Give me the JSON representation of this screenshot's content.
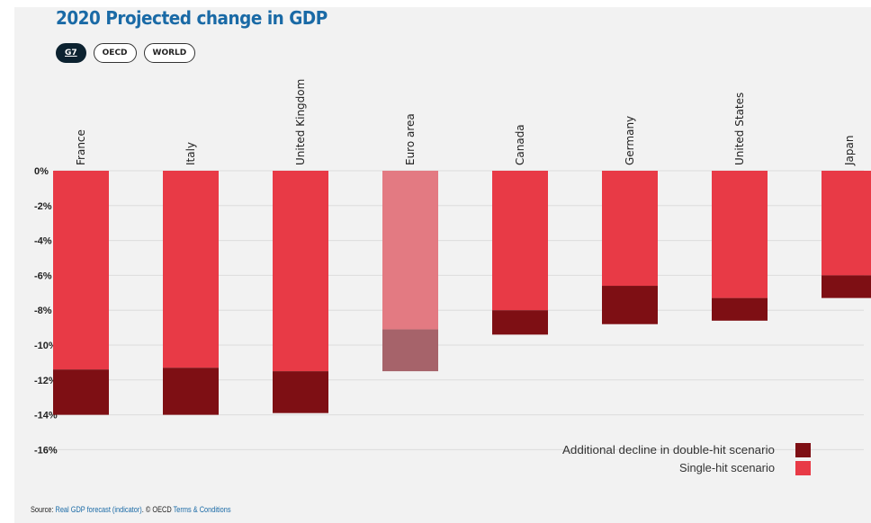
{
  "title": "2020 Projected change in GDP",
  "tabs": [
    {
      "label": "G7",
      "active": true
    },
    {
      "label": "OECD",
      "active": false
    },
    {
      "label": "WORLD",
      "active": false
    }
  ],
  "source": {
    "prefix": "Source: ",
    "link_text": "Real GDP forecast (indicator)",
    "middle": ". © OECD ",
    "terms_text": "Terms & Conditions"
  },
  "colors": {
    "single_hit": "#e83a46",
    "double_hit": "#7e0f14",
    "euro_single": "#e37a82",
    "euro_double": "#a6636a",
    "link": "#1a6aa6"
  },
  "chart_data": {
    "type": "bar",
    "stacked": true,
    "categories": [
      "France",
      "Italy",
      "United Kingdom",
      "Euro area",
      "Canada",
      "Germany",
      "United States",
      "Japan"
    ],
    "highlighted_category": "Euro area",
    "series": [
      {
        "name": "Single-hit scenario",
        "values": [
          -11.4,
          -11.3,
          -11.5,
          -9.1,
          -8.0,
          -6.6,
          -7.3,
          -6.0
        ]
      },
      {
        "name": "Additional decline in double-hit scenario",
        "values": [
          -2.6,
          -2.7,
          -2.4,
          -2.4,
          -1.4,
          -2.2,
          -1.3,
          -1.3
        ]
      }
    ],
    "y_ticks": [
      "0%",
      "-2%",
      "-4%",
      "-6%",
      "-8%",
      "-10%",
      "-12%",
      "-14%",
      "-16%"
    ],
    "y_tick_values": [
      0,
      -2,
      -4,
      -6,
      -8,
      -10,
      -12,
      -14,
      -16
    ],
    "ylim": [
      -16,
      0
    ],
    "grid": true,
    "legend": [
      {
        "label": "Additional decline in double-hit scenario",
        "color": "#7e0f14"
      },
      {
        "label": "Single-hit scenario",
        "color": "#e83a46"
      }
    ],
    "legend_position": "bottom-right"
  }
}
